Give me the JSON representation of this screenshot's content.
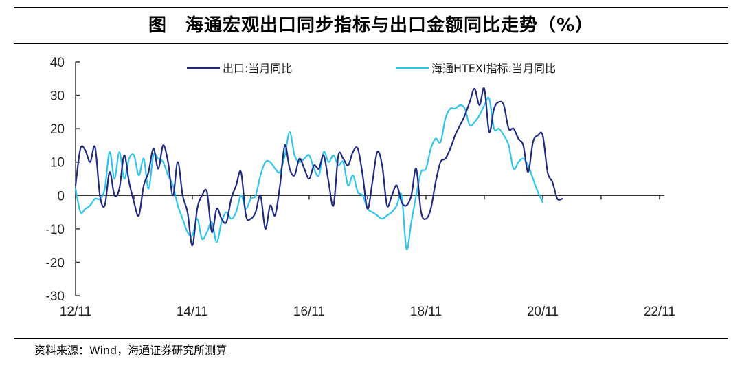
{
  "title": "图　海通宏观出口同步指标与出口金额同比走势（%）",
  "source": "资料来源：Wind，海通证券研究所测算",
  "chart_data": {
    "type": "line",
    "title": "图　海通宏观出口同步指标与出口金额同比走势（%）",
    "xlabel": "",
    "ylabel": "",
    "ylim": [
      -30,
      40
    ],
    "yticks": [
      -30,
      -20,
      -10,
      0,
      10,
      20,
      30,
      40
    ],
    "xlim": [
      0,
      121
    ],
    "xtick_labels": [
      {
        "label": "12/11",
        "index": 0
      },
      {
        "label": "14/11",
        "index": 24
      },
      {
        "label": "16/11",
        "index": 48
      },
      {
        "label": "18/11",
        "index": 72
      },
      {
        "label": "20/11",
        "index": 96
      },
      {
        "label": "22/11",
        "index": 120
      }
    ],
    "legend_position": "top",
    "series": [
      {
        "name": "出口:当月同比",
        "color": "#1f2a80",
        "values": [
          3,
          14,
          13.5,
          10,
          14.5,
          0,
          -3,
          7,
          0,
          2,
          12,
          4,
          -2,
          -6,
          3,
          7,
          14,
          8,
          15,
          10,
          0,
          10,
          0,
          -5,
          -15,
          -4,
          0,
          1,
          -11,
          -4,
          -7,
          -8,
          -1,
          3,
          7,
          -6,
          -7,
          -5,
          0,
          -10,
          -3,
          -6,
          3,
          15,
          8,
          6,
          11,
          8,
          5,
          9,
          8,
          12,
          4,
          -3,
          12,
          11,
          9,
          13,
          14,
          6,
          -4,
          4,
          13,
          9,
          -3,
          0,
          3,
          -2,
          -3,
          0,
          8,
          -5,
          -7,
          -4,
          4,
          10,
          11,
          14,
          18,
          21,
          24,
          28,
          32,
          27,
          32,
          19,
          26,
          28,
          27,
          20,
          20,
          17,
          15,
          7,
          16,
          18,
          18,
          7,
          4,
          -1,
          -1
        ]
      },
      {
        "name": "海通HTEXI指标:当月同比",
        "color": "#2ec4ee",
        "values": [
          2,
          -5,
          -4,
          -3,
          -1,
          -1,
          2,
          13,
          5,
          13,
          5,
          11,
          12,
          6,
          11,
          2,
          12,
          11,
          10,
          6,
          3,
          -3,
          -7,
          -11,
          -12,
          -7,
          -13,
          -11,
          -8,
          -14,
          -8,
          -5,
          -7,
          -5,
          0,
          -4,
          -1,
          0,
          6,
          10,
          10,
          8,
          7,
          12,
          19,
          12,
          10,
          11,
          12,
          8,
          6,
          13,
          10,
          12,
          9,
          10,
          3,
          6,
          1,
          0,
          -4,
          -5,
          -6,
          -7,
          -6,
          -5,
          -3,
          0,
          -16,
          -8,
          0,
          7,
          8,
          14,
          17,
          16,
          23,
          26,
          26,
          27,
          26,
          21,
          22,
          24,
          27,
          29,
          20,
          20,
          18,
          15,
          8,
          10,
          11,
          9,
          5,
          1,
          -2
        ]
      }
    ]
  }
}
